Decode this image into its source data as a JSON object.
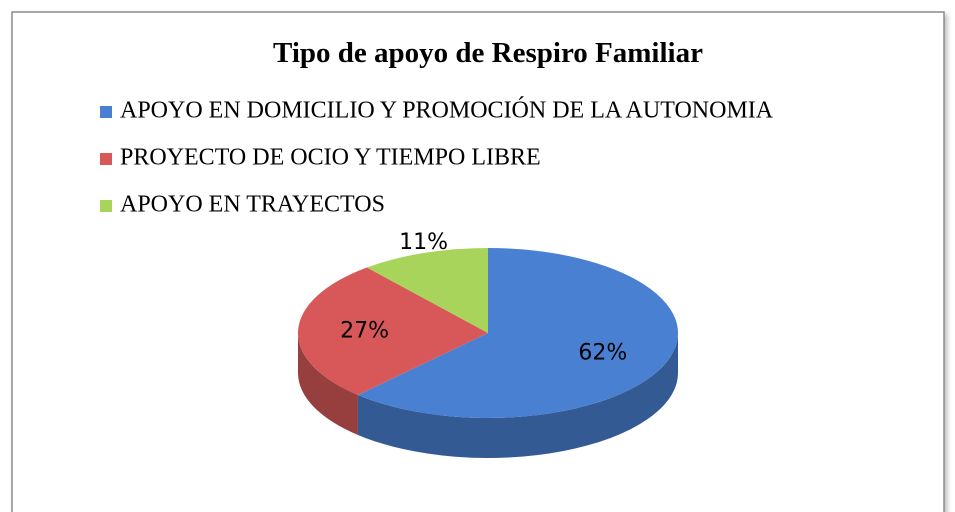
{
  "chart_data": {
    "type": "pie",
    "title": "Tipo de apoyo de Respiro Familiar",
    "categories": [
      "APOYO EN DOMICILIO Y PROMOCIÓN DE LA AUTONOMIA",
      "PROYECTO DE OCIO Y TIEMPO LIBRE",
      "APOYO EN TRAYECTOS"
    ],
    "values": [
      62,
      27,
      11
    ],
    "value_labels": [
      "62%",
      "27%",
      "11%"
    ],
    "colors": [
      "#4a80d2",
      "#d8585a",
      "#a8d45c"
    ],
    "legend": "top"
  }
}
